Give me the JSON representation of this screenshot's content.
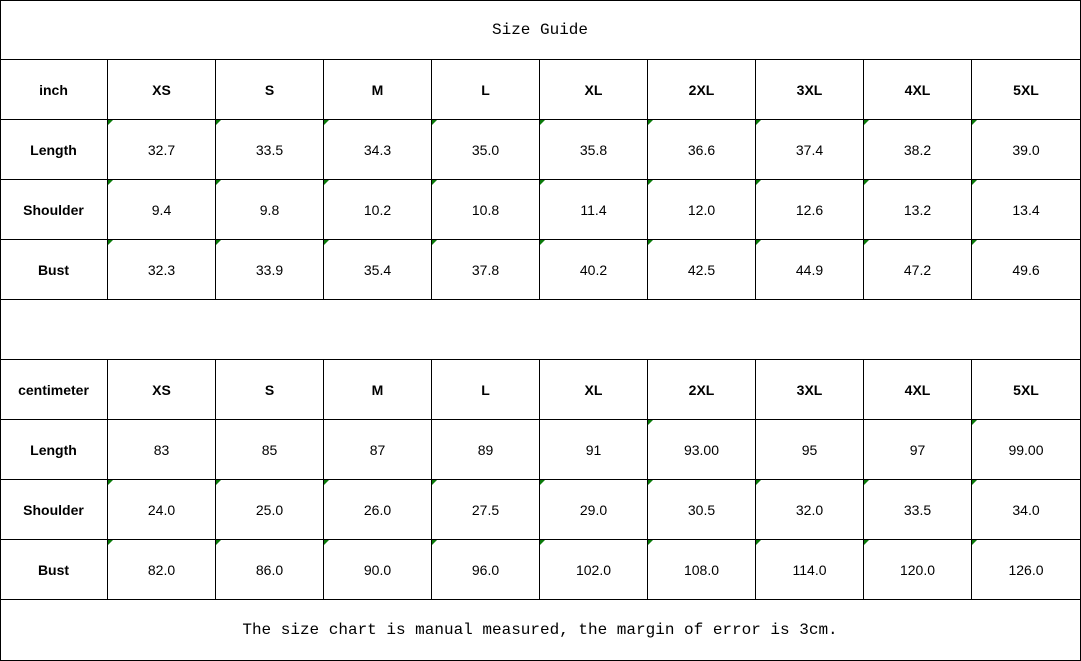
{
  "title": "Size Guide",
  "accent_colors": {
    "comment_marker": "#0a7a0a"
  },
  "sizes": [
    "XS",
    "S",
    "M",
    "L",
    "XL",
    "2XL",
    "3XL",
    "4XL",
    "5XL"
  ],
  "inch_table": {
    "unit_label": "inch",
    "rows": [
      {
        "label": "Length",
        "values": [
          "32.7",
          "33.5",
          "34.3",
          "35.0",
          "35.8",
          "36.6",
          "37.4",
          "38.2",
          "39.0"
        ],
        "markers": [
          1,
          1,
          1,
          1,
          1,
          1,
          1,
          1,
          1
        ]
      },
      {
        "label": "Shoulder",
        "values": [
          "9.4",
          "9.8",
          "10.2",
          "10.8",
          "11.4",
          "12.0",
          "12.6",
          "13.2",
          "13.4"
        ],
        "markers": [
          1,
          1,
          1,
          1,
          1,
          1,
          1,
          1,
          1
        ]
      },
      {
        "label": "Bust",
        "values": [
          "32.3",
          "33.9",
          "35.4",
          "37.8",
          "40.2",
          "42.5",
          "44.9",
          "47.2",
          "49.6"
        ],
        "markers": [
          1,
          1,
          1,
          1,
          1,
          1,
          1,
          1,
          1
        ]
      }
    ]
  },
  "cm_table": {
    "unit_label": "centimeter",
    "rows": [
      {
        "label": "Length",
        "values": [
          "83",
          "85",
          "87",
          "89",
          "91",
          "93.00",
          "95",
          "97",
          "99.00"
        ],
        "markers": [
          0,
          0,
          0,
          0,
          0,
          1,
          0,
          0,
          1
        ]
      },
      {
        "label": "Shoulder",
        "values": [
          "24.0",
          "25.0",
          "26.0",
          "27.5",
          "29.0",
          "30.5",
          "32.0",
          "33.5",
          "34.0"
        ],
        "markers": [
          1,
          1,
          1,
          1,
          1,
          1,
          1,
          1,
          1
        ]
      },
      {
        "label": "Bust",
        "values": [
          "82.0",
          "86.0",
          "90.0",
          "96.0",
          "102.0",
          "108.0",
          "114.0",
          "120.0",
          "126.0"
        ],
        "markers": [
          1,
          1,
          1,
          1,
          1,
          1,
          1,
          1,
          1
        ]
      }
    ]
  },
  "footer_note": "The size chart is manual measured, the margin of error is 3cm."
}
